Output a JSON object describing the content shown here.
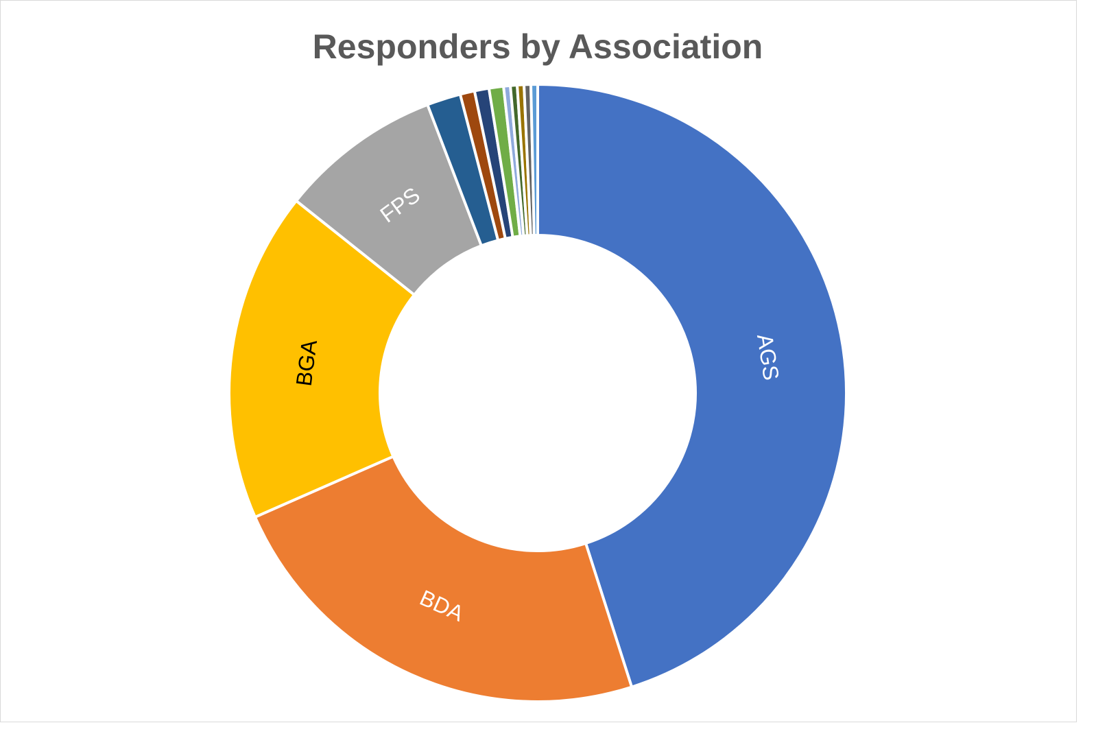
{
  "chart_data": {
    "type": "pie",
    "variant": "doughnut",
    "title": "Responders by Association",
    "legend": "none",
    "slices": [
      {
        "label": "AGS",
        "value": 44.6,
        "color": "#4472C4",
        "show_label": true,
        "label_color": "#ffffff"
      },
      {
        "label": "BDA",
        "value": 23.1,
        "color": "#ED7D31",
        "show_label": true,
        "label_color": "#ffffff"
      },
      {
        "label": "BGA",
        "value": 17.1,
        "color": "#FFC000",
        "show_label": true,
        "label_color": "#000000"
      },
      {
        "label": "FPS",
        "value": 8.4,
        "color": "#A5A5A5",
        "show_label": true,
        "label_color": "#ffffff"
      },
      {
        "label": "",
        "value": 1.75,
        "color": "#255E91",
        "show_label": false
      },
      {
        "label": "",
        "value": 0.75,
        "color": "#9E480E",
        "show_label": false
      },
      {
        "label": "",
        "value": 0.75,
        "color": "#264478",
        "show_label": false
      },
      {
        "label": "",
        "value": 0.75,
        "color": "#70AD47",
        "show_label": false
      },
      {
        "label": "",
        "value": 0.35,
        "color": "#8FAADC",
        "show_label": false
      },
      {
        "label": "",
        "value": 0.35,
        "color": "#43682B",
        "show_label": false
      },
      {
        "label": "",
        "value": 0.35,
        "color": "#997300",
        "show_label": false
      },
      {
        "label": "",
        "value": 0.35,
        "color": "#636363",
        "show_label": false
      },
      {
        "label": "",
        "value": 0.35,
        "color": "#5B9BD5",
        "show_label": false
      }
    ]
  }
}
